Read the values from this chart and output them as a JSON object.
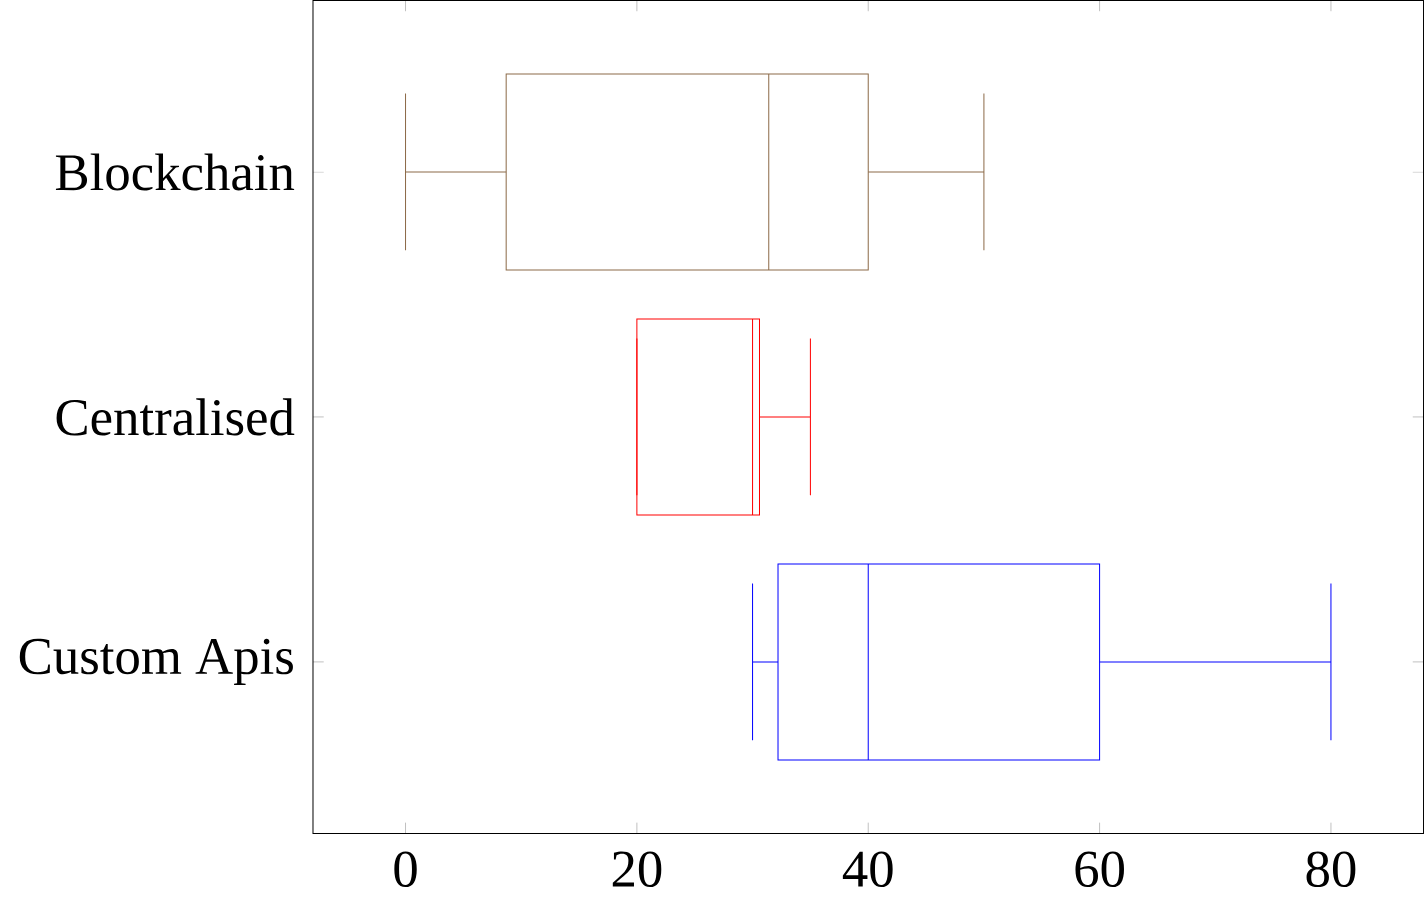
{
  "chart_data": {
    "type": "box",
    "orientation": "horizontal",
    "categories": [
      "Blockchain",
      "Centralised",
      "Custom Apis"
    ],
    "boxes": [
      {
        "low": 0,
        "q1": 8.7,
        "median": 31.4,
        "q3": 40,
        "high": 50
      },
      {
        "low": 20,
        "q1": 20,
        "median": 30,
        "q3": 30.6,
        "high": 35
      },
      {
        "low": 30,
        "q1": 32.2,
        "median": 40,
        "q3": 60,
        "high": 80
      }
    ],
    "colors": [
      "#8c6a48",
      "#ff0000",
      "#0000ff"
    ],
    "xlim": [
      -8,
      88
    ],
    "xticks": [
      0,
      20,
      40,
      60,
      80
    ],
    "grid": false
  }
}
